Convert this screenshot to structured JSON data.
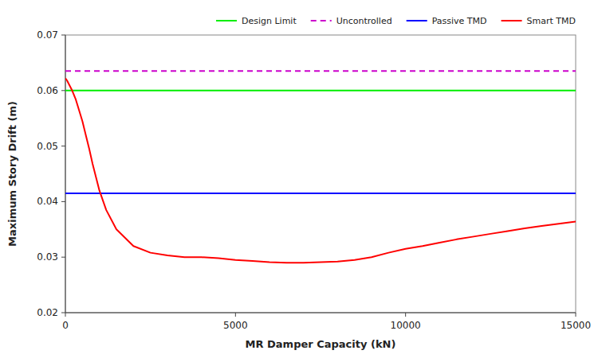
{
  "chart_data": {
    "type": "line",
    "xlabel": "MR Damper Capacity (kN)",
    "ylabel": "Maximum Story Drift (m)",
    "xlim": [
      0,
      15000
    ],
    "ylim": [
      0.02,
      0.07
    ],
    "xticks": [
      0,
      5000,
      10000,
      15000
    ],
    "yticks": [
      0.02,
      0.03,
      0.04,
      0.05,
      0.06,
      0.07
    ],
    "grid": false,
    "legend": "upper right",
    "series": [
      {
        "name": "Design Limit",
        "type": "hline",
        "color": "#00ee00",
        "line_style": "solid",
        "values": [
          0.06
        ]
      },
      {
        "name": "Uncontrolled",
        "type": "hline",
        "color": "#cc00cc",
        "line_style": "dashed",
        "values": [
          0.0635
        ]
      },
      {
        "name": "Passive TMD",
        "type": "hline",
        "color": "#0000ff",
        "line_style": "solid",
        "values": [
          0.0415
        ]
      },
      {
        "name": "Smart TMD",
        "type": "line",
        "color": "#ff0000",
        "line_style": "solid",
        "x": [
          0,
          50,
          100,
          200,
          300,
          400,
          500,
          600,
          700,
          800,
          1000,
          1200,
          1500,
          2000,
          2500,
          3000,
          3500,
          4000,
          4500,
          5000,
          5500,
          6000,
          6500,
          7000,
          7500,
          8000,
          8500,
          9000,
          9500,
          10000,
          10500,
          11000,
          11500,
          12000,
          12500,
          13000,
          13500,
          14000,
          14500,
          15000
        ],
        "values": [
          0.0622,
          0.0618,
          0.0612,
          0.06,
          0.0585,
          0.0565,
          0.0545,
          0.052,
          0.0495,
          0.0468,
          0.042,
          0.0385,
          0.035,
          0.032,
          0.0308,
          0.0303,
          0.03,
          0.03,
          0.0298,
          0.0295,
          0.0293,
          0.0291,
          0.029,
          0.029,
          0.0291,
          0.0292,
          0.0295,
          0.03,
          0.0308,
          0.0315,
          0.032,
          0.0326,
          0.0332,
          0.0337,
          0.0342,
          0.0347,
          0.0352,
          0.0356,
          0.036,
          0.0364
        ]
      }
    ]
  }
}
